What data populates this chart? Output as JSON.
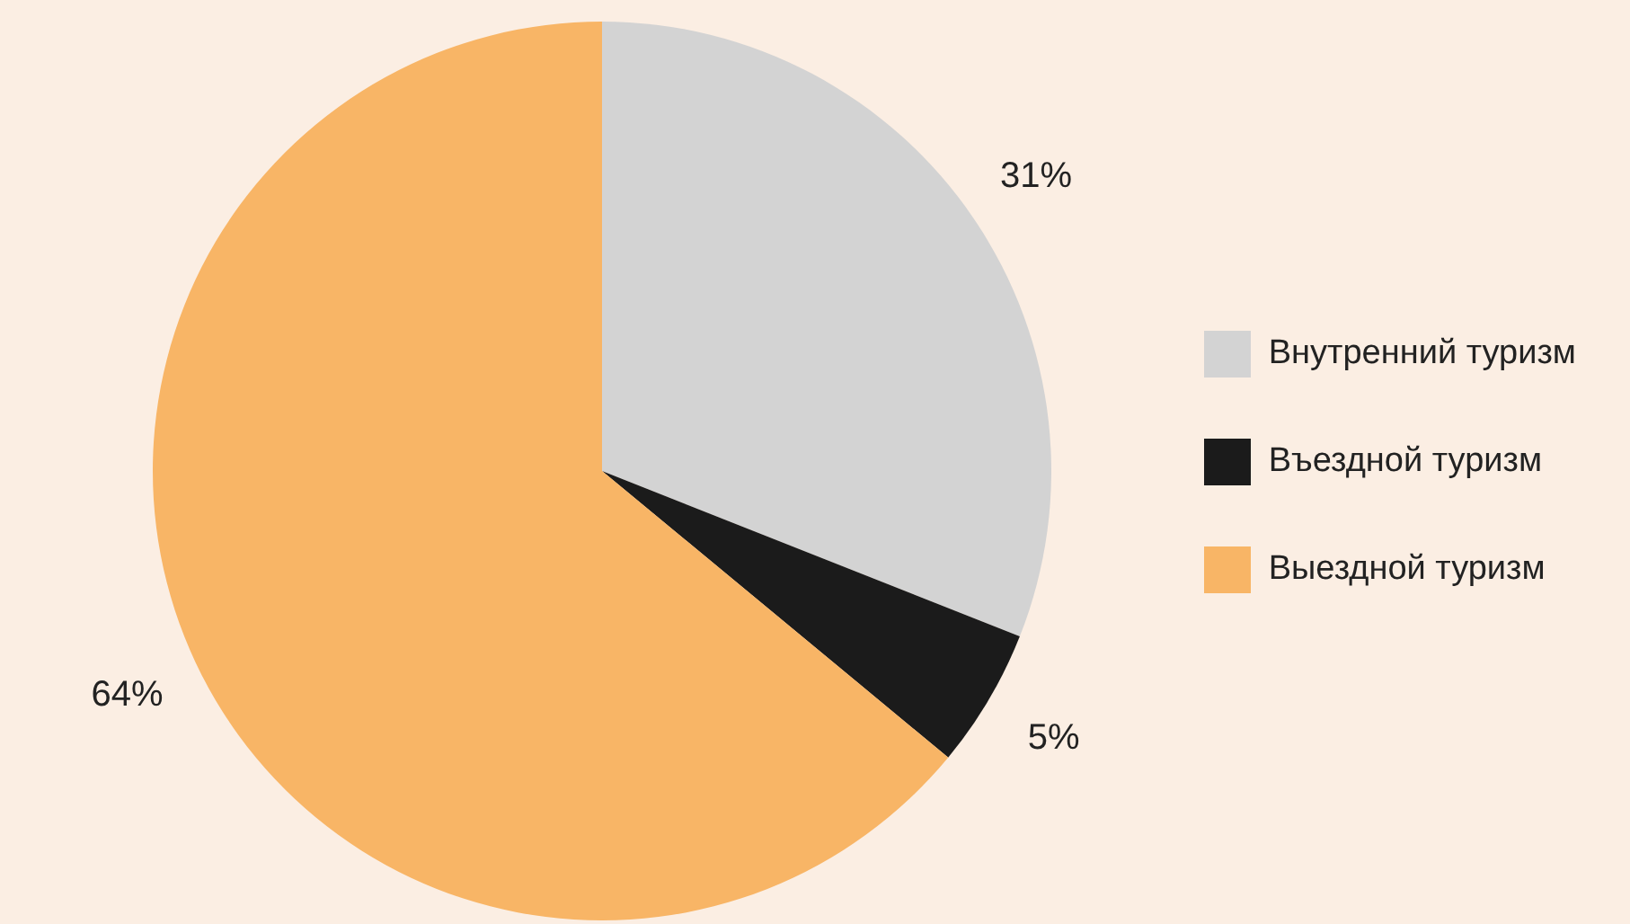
{
  "chart_data": {
    "type": "pie",
    "categories": [
      "Внутренний туризм",
      "Въездной туризм",
      "Выездной туризм"
    ],
    "values": [
      31,
      5,
      64
    ],
    "colors": [
      "#d3d3d3",
      "#1b1b1b",
      "#f8b566"
    ],
    "value_labels": [
      "31%",
      "5%",
      "64%"
    ],
    "legend": "right"
  }
}
